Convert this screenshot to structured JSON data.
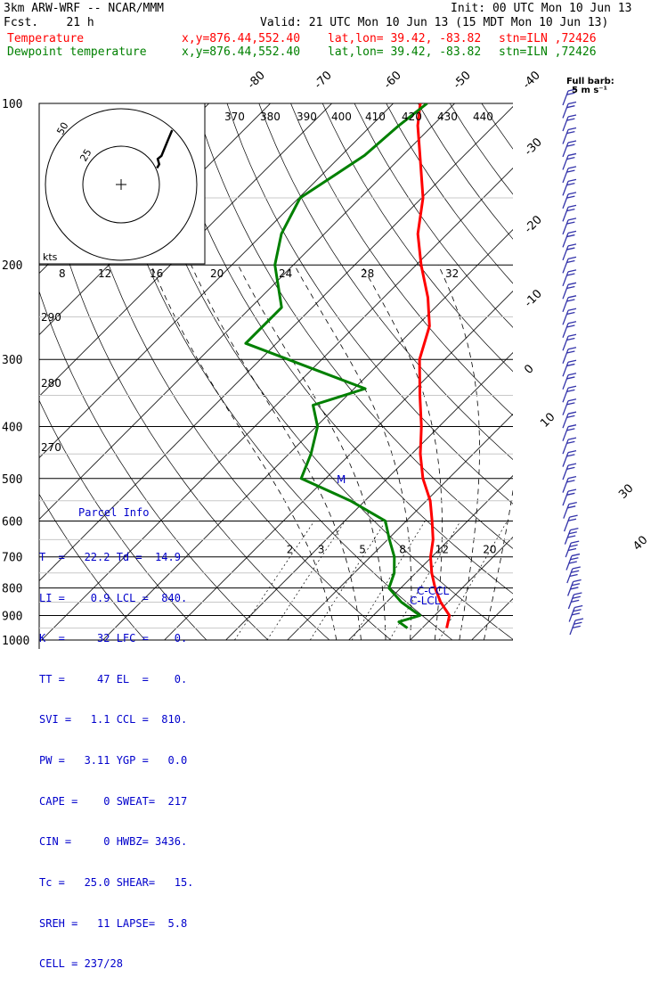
{
  "header": {
    "model": "3km ARW-WRF -- NCAR/MMM",
    "init": "Init: 00 UTC Mon 10 Jun 13",
    "fcst": "Fcst.    21 h",
    "valid": "Valid: 21 UTC Mon 10 Jun 13 (15 MDT Mon 10 Jun 13)",
    "temp_line": {
      "name": "Temperature",
      "xy": "x,y=876.44,552.40",
      "latlon": "lat,lon= 39.42, -83.82",
      "stn": "stn=ILN ,72426",
      "color": "#ff0000"
    },
    "dew_line": {
      "name": "Dewpoint temperature",
      "xy": "x,y=876.44,552.40",
      "latlon": "lat,lon= 39.42, -83.82",
      "stn": "stn=ILN ,72426",
      "color": "#008000"
    }
  },
  "parcel": {
    "title": "Parcel Info",
    "rows": [
      "T  =   22.2 Td =  14.9",
      "LI =    0.9 LCL =  840.",
      "K  =     32 LFC =    0.",
      "TT =     47 EL  =    0.",
      "SVI =   1.1 CCL =  810.",
      "PW =   3.11 YGP =   0.0",
      "CAPE =    0 SWEAT=  217",
      "CIN =     0 HWBZ= 3436.",
      "Tc =   25.0 SHEAR=   15.",
      "SREH =   11 LAPSE=  5.8",
      "CELL = 237/28"
    ]
  },
  "barb_legend": {
    "line1": "Full barb:",
    "line2": "5 m s⁻¹"
  },
  "hodograph_labels": {
    "units": "kts",
    "ring_inner": "25",
    "ring_outer": "50"
  },
  "chart_data": {
    "type": "line",
    "chart": "Skew-T log-P sounding",
    "y_axis": {
      "quantity": "pressure",
      "units": "hPa",
      "log_scale": true,
      "range": [
        1000,
        100
      ],
      "tick_labels": [
        "100",
        "200",
        "300",
        "400",
        "500",
        "600",
        "700",
        "800",
        "900",
        "1000"
      ]
    },
    "isotherm_labels": [
      "-80",
      "-70",
      "-60",
      "-50",
      "-40",
      "-30",
      "-20",
      "-10",
      "0",
      "10",
      "30",
      "40"
    ],
    "theta_labels": [
      "370",
      "380",
      "390",
      "400",
      "410",
      "420",
      "430",
      "440",
      "290",
      "280",
      "270"
    ],
    "mixing_ratio_labels": [
      "2",
      "3",
      "5",
      "8",
      "12",
      "20"
    ],
    "theta_e_labels": [
      "8",
      "12",
      "16",
      "20",
      "24",
      "28",
      "32"
    ],
    "annotations": [
      "C-CCL",
      "C-LCL",
      "M"
    ],
    "series": [
      {
        "name": "Temperature",
        "color": "#ff0000",
        "points": [
          [
            950,
            24.0
          ],
          [
            900,
            22.4
          ],
          [
            850,
            18.8
          ],
          [
            800,
            15.6
          ],
          [
            750,
            12.6
          ],
          [
            700,
            9.8
          ],
          [
            650,
            7.4
          ],
          [
            600,
            4.2
          ],
          [
            550,
            0.6
          ],
          [
            500,
            -4.2
          ],
          [
            450,
            -8.6
          ],
          [
            400,
            -12.9
          ],
          [
            350,
            -18.2
          ],
          [
            300,
            -24.1
          ],
          [
            260,
            -27.9
          ],
          [
            230,
            -32.8
          ],
          [
            200,
            -39.2
          ],
          [
            175,
            -44.8
          ],
          [
            150,
            -49.8
          ],
          [
            125,
            -57.2
          ],
          [
            110,
            -62.4
          ],
          [
            100,
            -65.6
          ]
        ]
      },
      {
        "name": "Dewpoint temperature",
        "color": "#008000",
        "points": [
          [
            950,
            17.6
          ],
          [
            925,
            15.2
          ],
          [
            900,
            17.6
          ],
          [
            850,
            12.4
          ],
          [
            800,
            8.1
          ],
          [
            750,
            6.5
          ],
          [
            700,
            3.9
          ],
          [
            650,
            0.3
          ],
          [
            600,
            -3.4
          ],
          [
            550,
            -12.4
          ],
          [
            500,
            -24.0
          ],
          [
            450,
            -26.4
          ],
          [
            400,
            -29.8
          ],
          [
            365,
            -34.0
          ],
          [
            340,
            -28.2
          ],
          [
            280,
            -55.0
          ],
          [
            240,
            -55.0
          ],
          [
            200,
            -63.0
          ],
          [
            175,
            -67.0
          ],
          [
            150,
            -69.8
          ],
          [
            125,
            -66.2
          ],
          [
            110,
            -65.5
          ],
          [
            100,
            -64.5
          ]
        ]
      }
    ],
    "wind_barb_count": 42,
    "hodograph": [
      [
        0.5,
        1.0
      ],
      [
        0.8,
        1.5
      ],
      [
        0.6,
        2.2
      ],
      [
        1.1,
        2.6
      ],
      [
        1.5,
        3.6
      ],
      [
        2.0,
        4.8
      ],
      [
        2.5,
        6.0
      ]
    ]
  }
}
